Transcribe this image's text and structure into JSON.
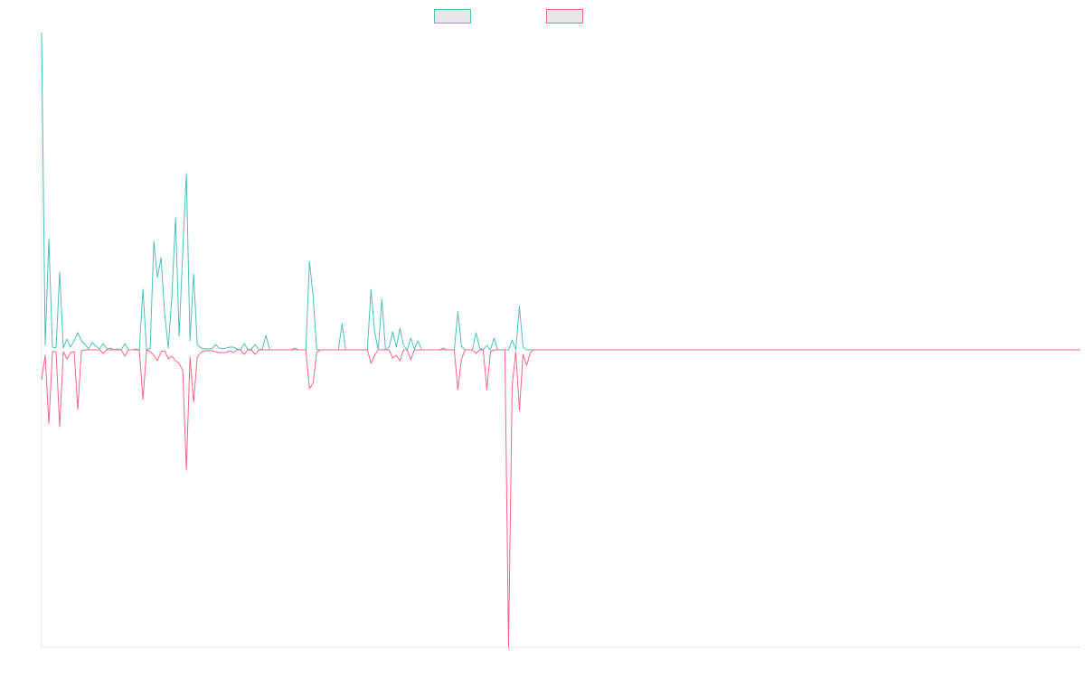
{
  "chart_data": {
    "type": "line",
    "ylim": [
      -329,
      351
    ],
    "series": [
      {
        "color": "#4bc0c0",
        "values": [
          351,
          5,
          123,
          3,
          2,
          86,
          2,
          12,
          3,
          10,
          19,
          10,
          6,
          1,
          8,
          4,
          1,
          7,
          1,
          2,
          0,
          1,
          0,
          7,
          0,
          0,
          1,
          0,
          67,
          0,
          2,
          120,
          80,
          102,
          40,
          2,
          60,
          146,
          15,
          110,
          195,
          10,
          84,
          6,
          2,
          1,
          1,
          1,
          6,
          2,
          1,
          2,
          3,
          3,
          1,
          0,
          7,
          0,
          1,
          6,
          0,
          1,
          16,
          0,
          0,
          0,
          0,
          0,
          0,
          0,
          2,
          0,
          0,
          0,
          98,
          60,
          0,
          0,
          0,
          0,
          0,
          0,
          0,
          29,
          0,
          0,
          0,
          0,
          0,
          0,
          0,
          67,
          20,
          0,
          56,
          0,
          3,
          20,
          3,
          24,
          5,
          0,
          13,
          1,
          10,
          0,
          0,
          0,
          0,
          0,
          0,
          2,
          0,
          0,
          0,
          42,
          4,
          0,
          0,
          0,
          19,
          2,
          0,
          5,
          0,
          13,
          0,
          0,
          0,
          0,
          11,
          0,
          48,
          3,
          0,
          0,
          0,
          0,
          0,
          0,
          0,
          0,
          0,
          0,
          0,
          0,
          0,
          0,
          0,
          0,
          0,
          0,
          0,
          0,
          0,
          0,
          0,
          0,
          0,
          0,
          0,
          0,
          0,
          0,
          0,
          0,
          0,
          0,
          0,
          0,
          0,
          0,
          0,
          0,
          0,
          0,
          0,
          0,
          0,
          0,
          0,
          0,
          0,
          0,
          0,
          0,
          0,
          0,
          0,
          0,
          0,
          0,
          0,
          0,
          0,
          0,
          0,
          0,
          0,
          0,
          0,
          0,
          0,
          0,
          0,
          0,
          0,
          0,
          0,
          0,
          0,
          0,
          0,
          0,
          0,
          0,
          0,
          0,
          0,
          0,
          0,
          0,
          0,
          0,
          0,
          0,
          0,
          0,
          0,
          0,
          0,
          0,
          0,
          0,
          0,
          0,
          0,
          0,
          0,
          0,
          0,
          0,
          0,
          0,
          0,
          0,
          0,
          0,
          0,
          0,
          0,
          0,
          0,
          0,
          0,
          0,
          0,
          0,
          0,
          0,
          0,
          0,
          0,
          0,
          0,
          0,
          0,
          0,
          0,
          0,
          0,
          0,
          0,
          0,
          0,
          0,
          0,
          0,
          0,
          0,
          0,
          0,
          0,
          0,
          0,
          0,
          0,
          0
        ]
      },
      {
        "color": "#ff6384",
        "values": [
          -33,
          -6,
          -82,
          -2,
          -2,
          -85,
          -2,
          -10,
          -3,
          -2,
          -66,
          -1,
          0,
          0,
          0,
          0,
          0,
          -4,
          0,
          0,
          0,
          0,
          0,
          -7,
          0,
          0,
          0,
          0,
          -55,
          0,
          -2,
          -6,
          -12,
          -2,
          -1,
          -10,
          -7,
          -12,
          -15,
          -23,
          -133,
          -8,
          -58,
          -8,
          -3,
          -1,
          -1,
          -1,
          -2,
          -3,
          -3,
          -3,
          -1,
          -3,
          0,
          0,
          -5,
          0,
          0,
          -5,
          0,
          0,
          0,
          0,
          0,
          0,
          0,
          0,
          0,
          0,
          0,
          0,
          0,
          0,
          -43,
          -37,
          -3,
          0,
          0,
          0,
          0,
          0,
          0,
          0,
          0,
          0,
          0,
          0,
          0,
          0,
          0,
          -15,
          -6,
          0,
          0,
          0,
          0,
          -9,
          -6,
          -12,
          0,
          0,
          -11,
          0,
          0,
          0,
          0,
          0,
          0,
          0,
          0,
          0,
          0,
          0,
          0,
          -44,
          -10,
          0,
          0,
          0,
          -4,
          0,
          0,
          -44,
          -2,
          0,
          0,
          0,
          0,
          -329,
          -40,
          -2,
          -67,
          -5,
          -17,
          -3,
          0,
          0,
          0,
          0,
          0,
          0,
          0,
          0,
          0,
          0,
          0,
          0,
          0,
          0,
          0,
          0,
          0,
          0,
          0,
          0,
          0,
          0,
          0,
          0,
          0,
          0,
          0,
          0,
          0,
          0,
          0,
          0,
          0,
          0,
          0,
          0,
          0,
          0,
          0,
          0,
          0,
          0,
          0,
          0,
          0,
          0,
          0,
          0,
          0,
          0,
          0,
          0,
          0,
          0,
          0,
          0,
          0,
          0,
          0,
          0,
          0,
          0,
          0,
          0,
          0,
          0,
          0,
          0,
          0,
          0,
          0,
          0,
          0,
          0,
          0,
          0,
          0,
          0,
          0,
          0,
          0,
          0,
          0,
          0,
          0,
          0,
          0,
          0,
          0,
          0,
          0,
          0,
          0,
          0,
          0,
          0,
          0,
          0,
          0,
          0,
          0,
          0,
          0,
          0,
          0,
          0,
          0,
          0,
          0,
          0,
          0,
          0,
          0,
          0,
          0,
          0,
          0,
          0,
          0,
          0,
          0,
          0,
          0,
          0,
          0,
          0,
          0,
          0,
          0,
          0,
          0,
          0,
          0,
          0,
          0,
          0,
          0,
          0,
          0,
          0,
          0,
          0,
          0,
          0,
          0,
          0,
          0,
          0,
          0,
          0,
          0,
          0
        ]
      }
    ]
  }
}
